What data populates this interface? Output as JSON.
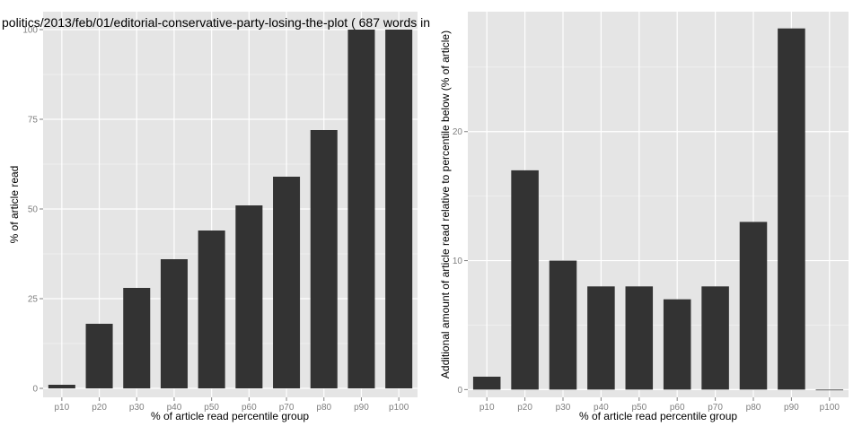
{
  "colors": {
    "panel_background": "#e5e5e5",
    "grid_major": "#ffffff",
    "grid_minor": "#f2f2f2",
    "bar_fill": "#333333",
    "tick_text": "#7f7f7f"
  },
  "chart_data": [
    {
      "type": "bar",
      "title": "politics/2013/feb/01/editorial-conservative-party-losing-the-plot ( 687 words in",
      "xlabel": "% of article read percentile group",
      "ylabel": "% of article read",
      "categories": [
        "p10",
        "p20",
        "p30",
        "p40",
        "p50",
        "p60",
        "p70",
        "p80",
        "p90",
        "p100"
      ],
      "values": [
        1,
        18,
        28,
        36,
        44,
        51,
        59,
        72,
        100,
        100
      ],
      "ylim": [
        -2.5,
        105
      ],
      "yticks": [
        0,
        25,
        50,
        75,
        100
      ],
      "ytick_labels": [
        "0",
        "25",
        "50",
        "75",
        "100"
      ],
      "grid": true
    },
    {
      "type": "bar",
      "title": "",
      "xlabel": "% of article read percentile group",
      "ylabel": "Additional amount of article read relative to percentile below (% of article)",
      "categories": [
        "p10",
        "p20",
        "p30",
        "p40",
        "p50",
        "p60",
        "p70",
        "p80",
        "p90",
        "p100"
      ],
      "values": [
        1,
        17,
        10,
        8,
        8,
        7,
        8,
        13,
        28,
        0
      ],
      "ylim": [
        -0.6,
        29.3
      ],
      "yticks": [
        0,
        10,
        20
      ],
      "ytick_labels": [
        "0",
        "10",
        "20"
      ],
      "grid": true
    }
  ]
}
